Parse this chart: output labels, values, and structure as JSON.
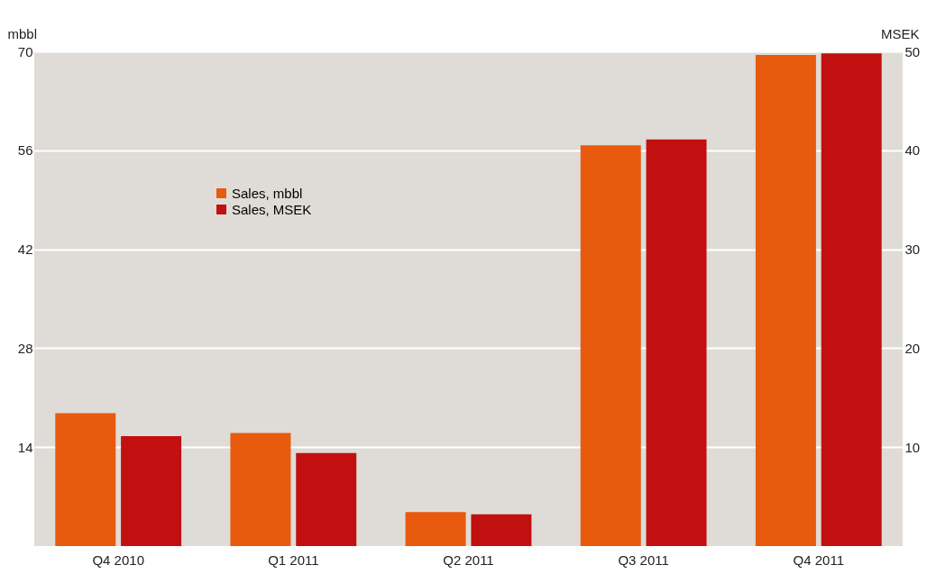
{
  "chart_data": {
    "type": "bar",
    "ylabel": "mbbl",
    "y2label": "MSEK",
    "categories": [
      "Q4 2010",
      "Q1 2011",
      "Q2 2011",
      "Q3 2011",
      "Q4 2011"
    ],
    "series": [
      {
        "name": "Sales, mbbl",
        "color": "#e85a0e",
        "values": [
          18.8,
          16.0,
          4.8,
          56.7,
          69.5
        ]
      },
      {
        "name": "Sales, MSEK",
        "color": "#c1100f",
        "axis": "y2",
        "values": [
          11.1,
          9.4,
          3.2,
          41.1,
          49.8
        ]
      }
    ],
    "ylim": [
      0,
      70
    ],
    "yticks": [
      14,
      28,
      42,
      56,
      70
    ],
    "y2lim": [
      0,
      50
    ],
    "y2ticks": [
      10,
      20,
      30,
      40,
      50
    ],
    "grid": "y",
    "legend": "top left"
  }
}
